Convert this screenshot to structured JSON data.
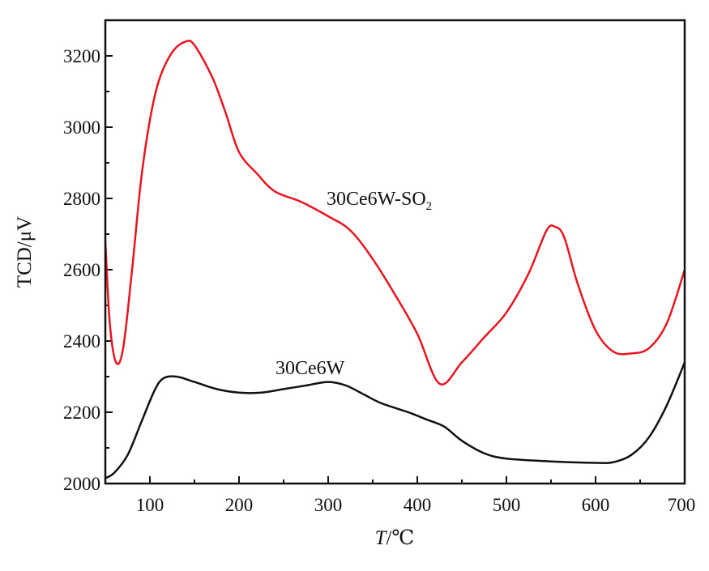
{
  "chart_data": {
    "type": "line",
    "title": "",
    "xlabel": "T/℃",
    "xlabel_italic": "T",
    "xlabel_unit": "/℃",
    "ylabel": "TCD/μV",
    "xlim": [
      50,
      700
    ],
    "ylim": [
      2000,
      3300
    ],
    "xticks": [
      100,
      200,
      300,
      400,
      500,
      600,
      700
    ],
    "yticks": [
      2000,
      2200,
      2400,
      2600,
      2800,
      3000,
      3200
    ],
    "grid": false,
    "legend": "none",
    "series": [
      {
        "name": "30Ce6W-SO2",
        "label_main": "30Ce6W-SO",
        "label_sub": "2",
        "color": "#e8141e",
        "x": [
          50,
          55,
          62,
          70,
          80,
          90,
          100,
          110,
          125,
          140,
          150,
          170,
          185,
          200,
          220,
          240,
          270,
          300,
          325,
          350,
          375,
          400,
          425,
          450,
          475,
          500,
          525,
          545,
          555,
          565,
          580,
          600,
          620,
          640,
          660,
          680,
          700
        ],
        "y": [
          2680,
          2450,
          2340,
          2380,
          2600,
          2850,
          3020,
          3130,
          3210,
          3240,
          3230,
          3140,
          3040,
          2930,
          2870,
          2820,
          2790,
          2750,
          2710,
          2630,
          2530,
          2420,
          2280,
          2340,
          2410,
          2480,
          2590,
          2710,
          2720,
          2690,
          2560,
          2430,
          2370,
          2365,
          2380,
          2450,
          2600
        ]
      },
      {
        "name": "30Ce6W",
        "label_main": "30Ce6W",
        "label_sub": "",
        "color": "#111111",
        "x": [
          50,
          60,
          75,
          90,
          105,
          115,
          130,
          150,
          175,
          200,
          225,
          250,
          275,
          300,
          320,
          340,
          360,
          390,
          410,
          430,
          450,
          475,
          500,
          550,
          600,
          620,
          640,
          660,
          680,
          700
        ],
        "y": [
          2015,
          2030,
          2080,
          2170,
          2260,
          2295,
          2300,
          2285,
          2265,
          2255,
          2255,
          2265,
          2275,
          2285,
          2275,
          2250,
          2225,
          2200,
          2180,
          2160,
          2120,
          2085,
          2070,
          2062,
          2058,
          2060,
          2080,
          2130,
          2220,
          2340
        ]
      }
    ]
  }
}
